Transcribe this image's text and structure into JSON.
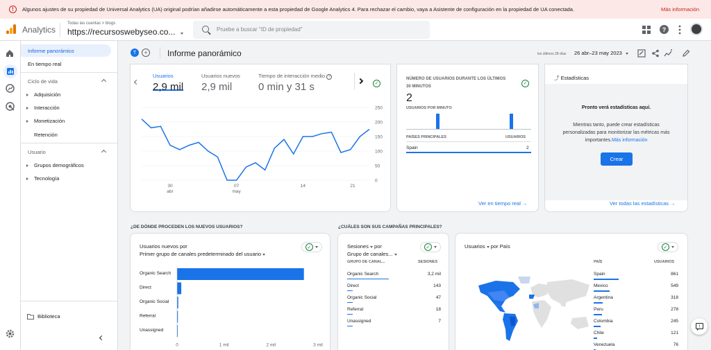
{
  "banner": {
    "text": "Algunos ajustes de su propiedad de Universal Analytics (UA) original podrían añadirse automáticamente a esta propiedad de Google Analytics 4. Para rechazar el cambio, vaya a Asistente de configuración en la propiedad de UA conectada.",
    "link": "Más información"
  },
  "header": {
    "brand": "Analytics",
    "crumb": "Todas las cuentas > blogs",
    "property": "https://recursoswebyseo.co...",
    "search_placeholder": "Pruebe a buscar \"ID de propiedad\""
  },
  "nav": {
    "selected": "Informe panorámico",
    "realtime": "En tiempo real",
    "lifecycle": "Ciclo de vida",
    "lifecycle_items": [
      "Adquisición",
      "Interacción",
      "Monetización"
    ],
    "retention": "Retención",
    "user": "Usuario",
    "user_items": [
      "Grupos demográficos",
      "Tecnología"
    ],
    "library": "Biblioteca"
  },
  "page": {
    "title": "Informe panorámico",
    "avatar_letter": "T",
    "date_prefix": "los últimos 28 días",
    "date_range": "26 abr–23 may 2023"
  },
  "metrics": [
    {
      "label": "Usuarios",
      "value": "2,9 mil"
    },
    {
      "label": "Usuarios nuevos",
      "value": "2,9 mil"
    },
    {
      "label": "Tiempo de interacción medio",
      "value": "0 min y 31 s"
    }
  ],
  "line_chart": {
    "y_ticks": [
      "250",
      "200",
      "150",
      "100",
      "50",
      "0"
    ],
    "x_ticks": [
      {
        "day": "30",
        "month": "abr"
      },
      {
        "day": "07",
        "month": "may"
      },
      {
        "day": "14",
        "month": ""
      },
      {
        "day": "21",
        "month": ""
      }
    ],
    "values": [
      210,
      180,
      185,
      120,
      105,
      120,
      130,
      100,
      80,
      0,
      0,
      45,
      60,
      35,
      110,
      140,
      90,
      150,
      150,
      160,
      165,
      95,
      105,
      150,
      175
    ]
  },
  "realtime": {
    "title_line1": "NÚMERO DE USUARIOS DURANTE LOS ÚLTIMOS",
    "title_line2": "30 MINUTOS",
    "count": "2",
    "per_minute": "USUARIOS POR MINUTO",
    "col1": "PAÍSES PRINCIPALES",
    "col2": "USUARIOS",
    "row_country": "Spain",
    "row_value": "2",
    "link": "Ver en tiempo real"
  },
  "insights": {
    "title": "Estadísticas",
    "heading": "Pronto verá estadísticas aquí.",
    "body": "Mientras tanto, puede crear estadísticas personalizadas para monitorizar las métricas más importantes.",
    "body_link": "Más información",
    "button": "Crear",
    "link": "Ver todas las estadísticas"
  },
  "section1": "¿DE DÓNDE PROCEDEN LOS NUEVOS USUARIOS?",
  "section2": "¿CUÁLES SON SUS CAMPAÑAS PRINCIPALES?",
  "new_users": {
    "title": "Usuarios nuevos por",
    "subtitle": "Primer grupo de canales predeterminado del usuario",
    "categories": [
      "Organic Search",
      "Direct",
      "Organic Social",
      "Referral",
      "Unassigned"
    ],
    "values": [
      2700,
      90,
      25,
      18,
      6
    ],
    "x_ticks": [
      "0",
      "1 mil",
      "2 mil",
      "3 mil"
    ],
    "xmax": 3000
  },
  "campaigns": {
    "title": "Sesiones",
    "title_by": "por",
    "subtitle": "Grupo de canales...",
    "col1": "GRUPO DE CANAL...",
    "col2": "SESIONES",
    "rows": [
      {
        "name": "Organic Search",
        "value": "3,2 mil"
      },
      {
        "name": "Direct",
        "value": "143"
      },
      {
        "name": "Organic Social",
        "value": "47"
      },
      {
        "name": "Referral",
        "value": "18"
      },
      {
        "name": "Unassigned",
        "value": "7"
      }
    ]
  },
  "countries": {
    "title": "Usuarios",
    "title_by": "por País",
    "col1": "PAÍS",
    "col2": "USUARIOS",
    "rows": [
      {
        "name": "Spain",
        "value": "861"
      },
      {
        "name": "Mexico",
        "value": "549"
      },
      {
        "name": "Argentina",
        "value": "318"
      },
      {
        "name": "Peru",
        "value": "278"
      },
      {
        "name": "Colombia",
        "value": "245"
      },
      {
        "name": "Chile",
        "value": "121"
      },
      {
        "name": "Venezuela",
        "value": "76"
      }
    ]
  }
}
